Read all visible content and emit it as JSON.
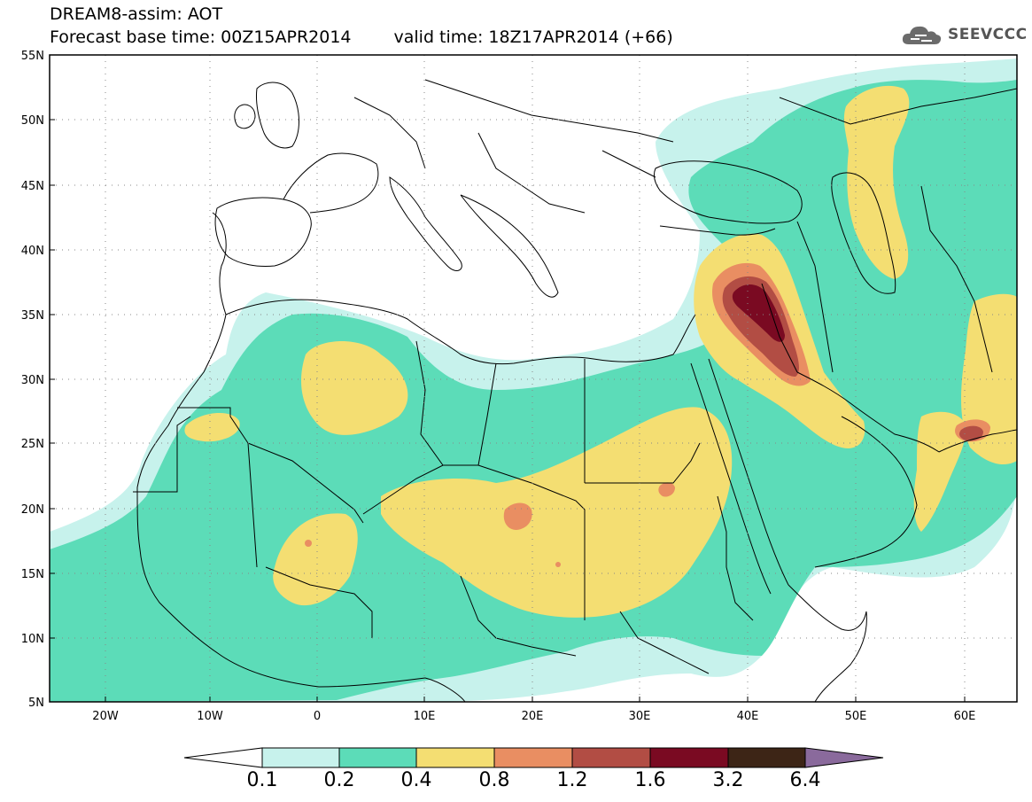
{
  "header": {
    "title": "DREAM8-assim: AOT",
    "base_time": "Forecast base time: 00Z15APR2014",
    "valid_time": "valid time: 18Z17APR2014 (+66)",
    "logo_text": "SEEVCCC"
  },
  "map": {
    "lat_labels": [
      "55N",
      "50N",
      "45N",
      "40N",
      "35N",
      "30N",
      "25N",
      "20N",
      "15N",
      "10N",
      "5N"
    ],
    "lon_labels": [
      "20W",
      "10W",
      "0",
      "10E",
      "20E",
      "30E",
      "40E",
      "50E",
      "60E"
    ]
  },
  "colorbar": {
    "labels": [
      "0.1",
      "0.2",
      "0.4",
      "0.8",
      "1.2",
      "1.6",
      "3.2",
      "6.4"
    ],
    "colors": [
      "#c7f2ec",
      "#5cdcb8",
      "#f4de72",
      "#e98e62",
      "#b24d44",
      "#7a0a22",
      "#3d2516",
      "#8a6a9c"
    ]
  }
}
